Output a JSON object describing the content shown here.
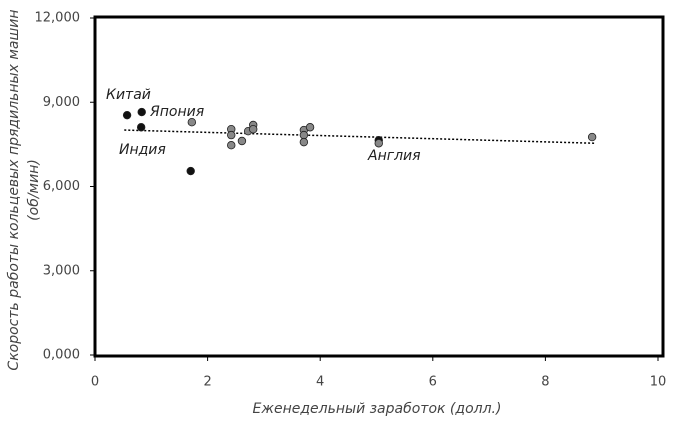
{
  "chart_data": {
    "type": "scatter",
    "x_label": "Еженедельный заработок (долл.)",
    "y_label": [
      "Скорость работы кольцевых прядильных машин",
      "(об/мин)"
    ],
    "x": [
      0.57,
      0.83,
      0.82,
      1.72,
      1.7,
      2.42,
      2.42,
      2.42,
      2.61,
      2.72,
      2.81,
      2.81,
      3.71,
      3.71,
      3.71,
      3.82,
      5.04,
      5.04,
      8.83
    ],
    "y": [
      8540,
      8650,
      8110,
      8290,
      6550,
      8040,
      7830,
      7470,
      7620,
      7970,
      8190,
      8040,
      8010,
      7830,
      7580,
      8110,
      7650,
      7540,
      7760
    ],
    "colors": [
      "#111",
      "#111",
      "#111",
      "#888",
      "#111",
      "#888",
      "#888",
      "#888",
      "#888",
      "#888",
      "#888",
      "#888",
      "#888",
      "#888",
      "#888",
      "#888",
      "#111",
      "#888",
      "#888"
    ],
    "trendline": {
      "x": [
        0.52,
        8.88
      ],
      "y": [
        8010,
        7540
      ]
    },
    "annotations": [
      "Китай",
      "Япония",
      "Индия",
      "Англия"
    ],
    "xlim": [
      0,
      10
    ],
    "xticks": [
      0,
      2,
      4,
      6,
      8,
      10
    ],
    "ylim": [
      0,
      12000
    ],
    "yticks": [
      {
        "value": 0,
        "label": "0,000"
      },
      {
        "value": 3000,
        "label": "3,000"
      },
      {
        "value": 6000,
        "label": "6,000"
      },
      {
        "value": 9000,
        "label": "9,000"
      },
      {
        "value": 12000,
        "label": "12,000"
      }
    ]
  }
}
